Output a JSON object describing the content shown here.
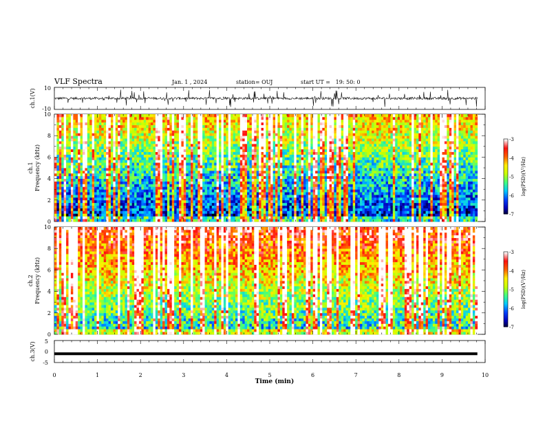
{
  "header": {
    "title": "VLF Spectra",
    "date": "Jan. 1 , 2024",
    "station": "station= OUJ",
    "start": "start UT =   19: 50: 0"
  },
  "chart_data": [
    {
      "type": "line",
      "name": "ch1-waveform",
      "ylabel": "ch.1(V)",
      "ylim": [
        -10,
        10
      ],
      "yticks": [
        "10",
        "-10"
      ],
      "xlim": [
        0,
        10
      ],
      "note_values": {
        "baseline": 0,
        "extent": [
          0,
          9.82
        ]
      }
    },
    {
      "type": "heatmap",
      "name": "ch1-spectrogram",
      "ylabel": "ch.1 Frequency (kHz)",
      "ylim": [
        0,
        10
      ],
      "yticks": [
        "0",
        "2",
        "4",
        "6",
        "8",
        "10"
      ],
      "xlim": [
        0,
        10
      ],
      "data_x_extent": [
        0,
        9.82
      ],
      "colorbar": {
        "label": "log(PSD)(V²/Hz)",
        "range": [
          -7,
          -3
        ],
        "ticks": [
          "-3",
          "-4",
          "-5",
          "-6",
          "-7"
        ]
      }
    },
    {
      "type": "heatmap",
      "name": "ch2-spectrogram",
      "ylabel": "ch.2 Frequency (kHz)",
      "ylim": [
        0,
        10
      ],
      "yticks": [
        "0",
        "2",
        "4",
        "6",
        "8",
        "10"
      ],
      "xlim": [
        0,
        10
      ],
      "data_x_extent": [
        0,
        9.82
      ],
      "colorbar": {
        "label": "log(PSD)(V²/Hz)",
        "range": [
          -7,
          -3
        ],
        "ticks": [
          "-3",
          "-4",
          "-5",
          "-6",
          "-7"
        ]
      }
    },
    {
      "type": "line",
      "name": "ch3-waveform",
      "ylabel": "ch.3(V)",
      "ylim": [
        -5,
        5
      ],
      "yticks": [
        "5",
        "0",
        "-5"
      ],
      "xlim": [
        0,
        10
      ],
      "xlabel": "Time (min)",
      "xticks": [
        "0",
        "1",
        "2",
        "3",
        "4",
        "5",
        "6",
        "7",
        "8",
        "9",
        "10"
      ],
      "values": {
        "constant": -1,
        "extent": [
          0,
          9.82
        ]
      }
    }
  ],
  "colors": {
    "scale": [
      "#000000",
      "#0000b4",
      "#0040ff",
      "#00c8ff",
      "#40ff80",
      "#c8ff00",
      "#ffee00",
      "#ff6000",
      "#ff1010",
      "#ffffff"
    ]
  }
}
